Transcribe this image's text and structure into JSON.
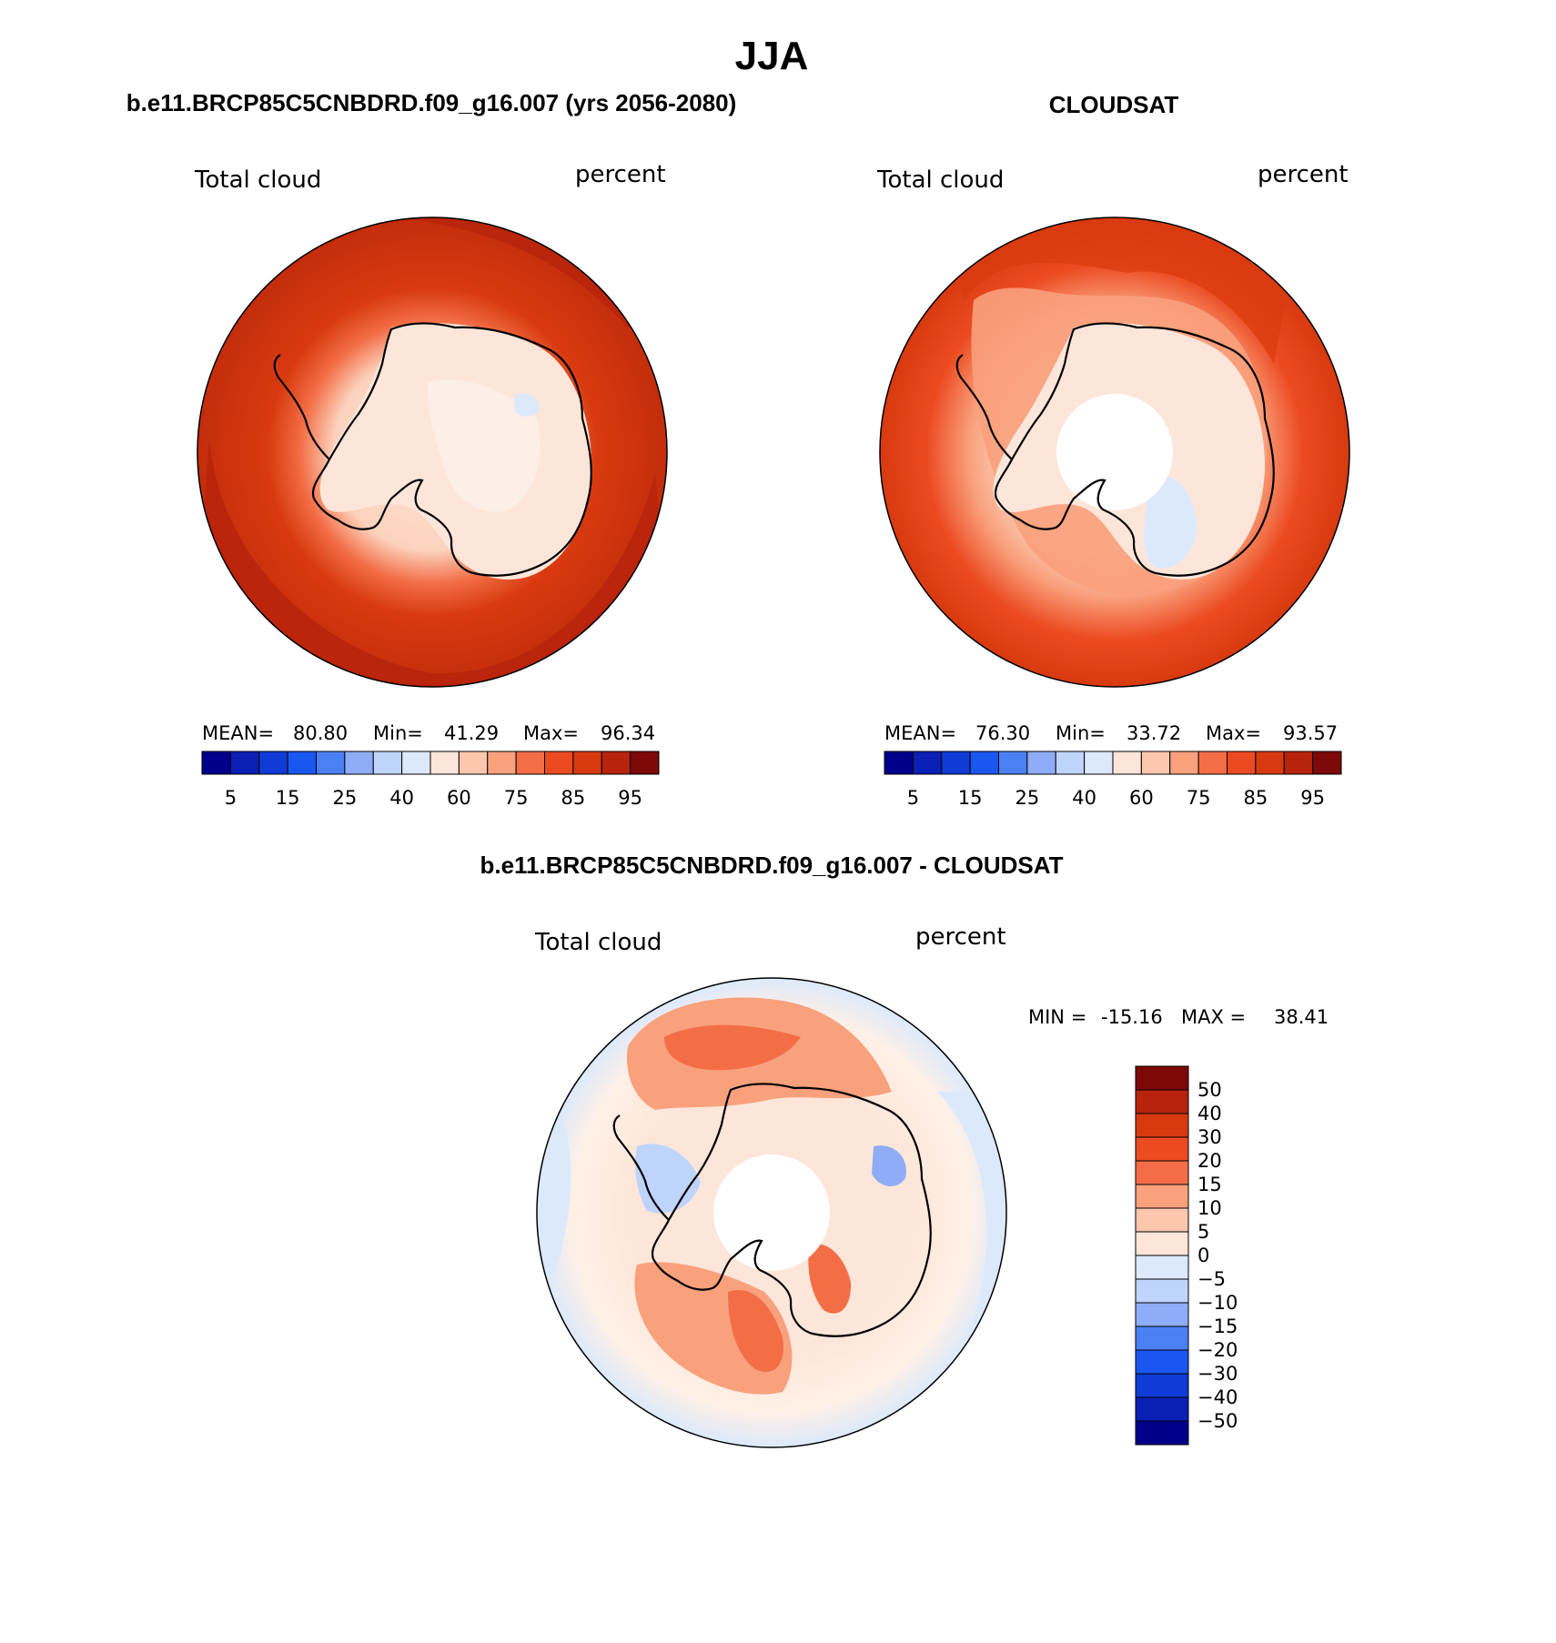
{
  "figure": {
    "season": "JJA",
    "diff_title": "b.e11.BRCP85C5CNBDRD.f09_g16.007 - CLOUDSAT"
  },
  "colors": {
    "abs": [
      "#00008a",
      "#0a1fb5",
      "#0f3bd6",
      "#1a56f0",
      "#4b80f5",
      "#8fadf7",
      "#bfd4fb",
      "#dce9fb",
      "#fde6d9",
      "#fcc7ad",
      "#f9a07c",
      "#f36e47",
      "#ec4b22",
      "#d83a10",
      "#b7230c",
      "#7d0a08"
    ],
    "diff": [
      "#00008a",
      "#0a1fb5",
      "#0f3bd6",
      "#1a56f0",
      "#4b80f5",
      "#8fadf7",
      "#bfd4fb",
      "#dce9fb",
      "#fde6d9",
      "#fcc7ad",
      "#f9a07c",
      "#f36e47",
      "#ec4b22",
      "#d83a10",
      "#b7230c",
      "#7d0a08"
    ]
  },
  "chart_data": [
    {
      "type": "heatmap",
      "projection": "south-polar-stereographic",
      "title": "b.e11.BRCP85C5CNBDRD.f09_g16.007 (yrs 2056-2080)",
      "left_label": "Total cloud",
      "right_label": "percent",
      "stats": {
        "mean_label": "MEAN=",
        "mean": "80.80",
        "min_label": "Min=",
        "min": "41.29",
        "max_label": "Max=",
        "max": "96.34"
      },
      "colorbar_ticks": [
        "5",
        "15",
        "25",
        "40",
        "60",
        "75",
        "85",
        "95"
      ],
      "field": {
        "ocean_outer": 88,
        "ocean_inner": 82,
        "ice_edge": 76,
        "continent": 58,
        "pole_hole": false
      }
    },
    {
      "type": "heatmap",
      "projection": "south-polar-stereographic",
      "title": "CLOUDSAT",
      "left_label": "Total cloud",
      "right_label": "percent",
      "stats": {
        "mean_label": "MEAN=",
        "mean": "76.30",
        "min_label": "Min=",
        "min": "33.72",
        "max_label": "Max=",
        "max": "93.57"
      },
      "colorbar_ticks": [
        "5",
        "15",
        "25",
        "40",
        "60",
        "75",
        "85",
        "95"
      ],
      "field": {
        "ocean_outer": 84,
        "ocean_inner": 78,
        "ice_edge": 70,
        "continent": 60,
        "pole_hole": true
      }
    },
    {
      "type": "heatmap",
      "projection": "south-polar-stereographic",
      "title": "b.e11.BRCP85C5CNBDRD.f09_g16.007 - CLOUDSAT",
      "left_label": "Total cloud",
      "right_label": "percent",
      "stats": {
        "min_label": "MIN =",
        "min": "-15.16",
        "max_label": "MAX =",
        "max": "38.41"
      },
      "colorbar_ticks": [
        "50",
        "40",
        "30",
        "20",
        "15",
        "10",
        "5",
        "0",
        "-5",
        "-10",
        "-15",
        "-20",
        "-30",
        "-40",
        "-50"
      ],
      "field": {
        "ocean_outer": 2,
        "ocean_inner": 6,
        "ice_edge": 12,
        "continent": -3,
        "pole_hole": true
      }
    }
  ]
}
